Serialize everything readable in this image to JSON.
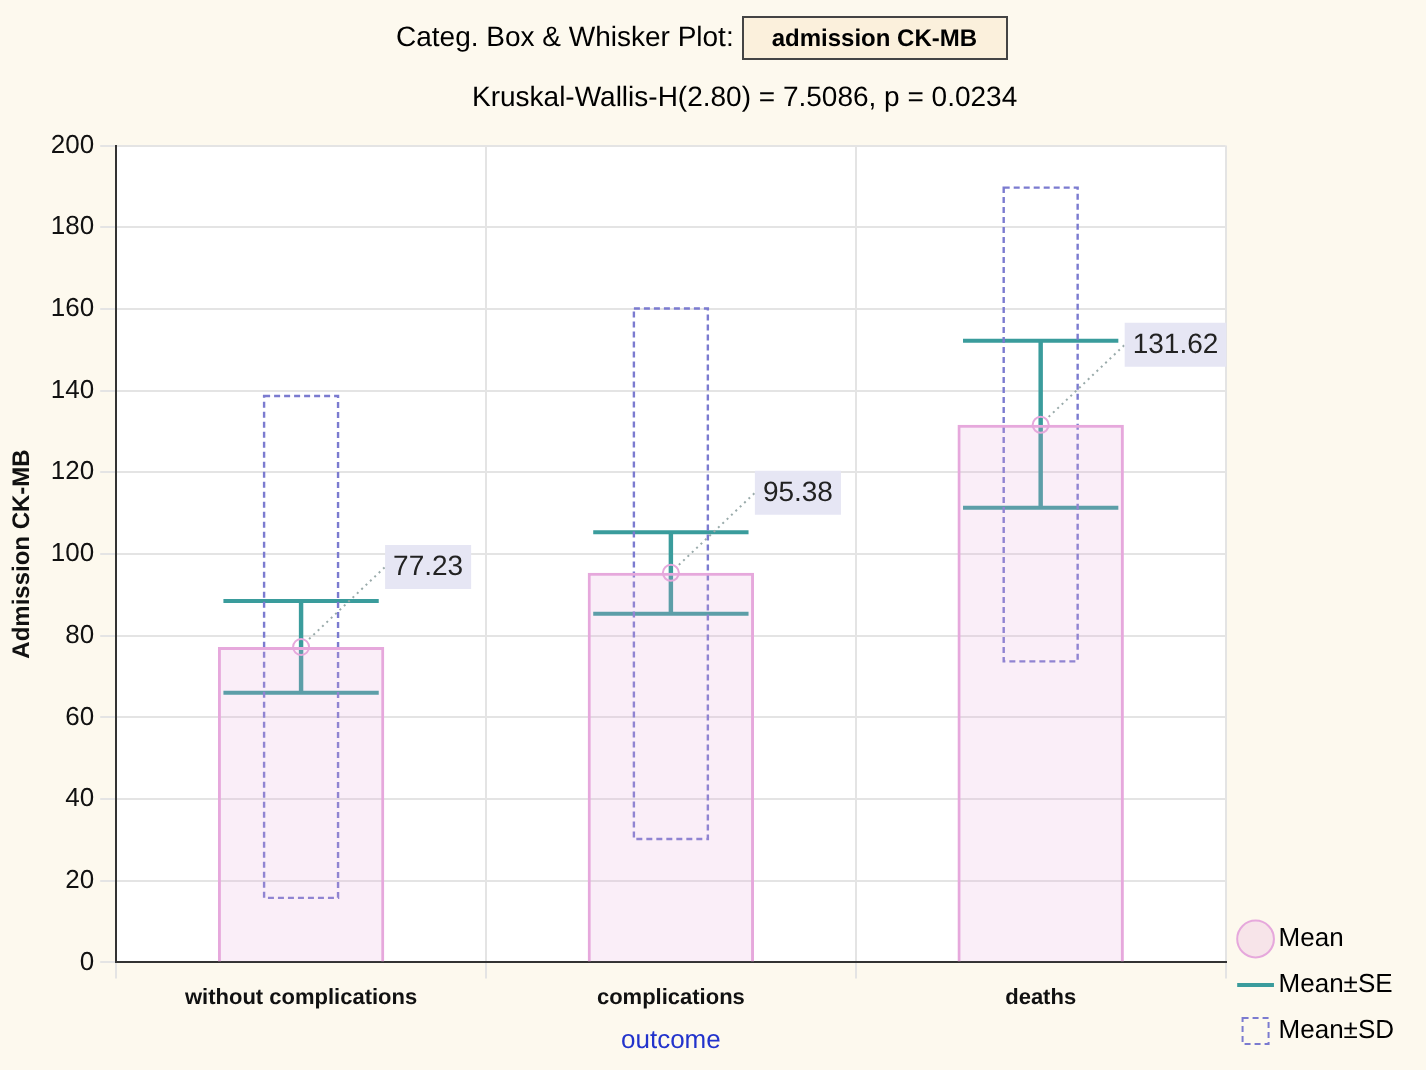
{
  "chart_data": {
    "type": "bar",
    "title": "Categ. Box & Whisker Plot:",
    "subtitle": "Kruskal-Wallis-H(2.80) = 7.5086, p = 0.0234",
    "annotations": [
      "admission CK-MB"
    ],
    "xlabel": "outcome",
    "ylabel": "Admission CK-MB",
    "categories": [
      "without complications",
      "complications",
      "deaths"
    ],
    "ylim": [
      0,
      200
    ],
    "yticks": [
      0,
      20,
      40,
      60,
      80,
      100,
      120,
      140,
      160,
      180,
      200
    ],
    "grid": true,
    "legend": "bottom right",
    "marker": "circle",
    "series": [
      {
        "name": "Mean",
        "color": "#e6a8dc",
        "values": [
          77.23,
          95.38,
          131.62
        ],
        "value_labels": [
          "77.23",
          "95.38",
          "131.62"
        ]
      },
      {
        "name": "Mean±SE",
        "color": "#3a9c9c",
        "base": [
          66.0,
          85.4,
          111.3
        ],
        "values": [
          22.5,
          19.9,
          40.9
        ]
      },
      {
        "name": "Mean±SD",
        "color": "#7b7bd0",
        "line_style": "dashed",
        "base": [
          15.8,
          30.2,
          73.7
        ],
        "values": [
          122.9,
          129.9,
          116.0
        ]
      }
    ]
  }
}
